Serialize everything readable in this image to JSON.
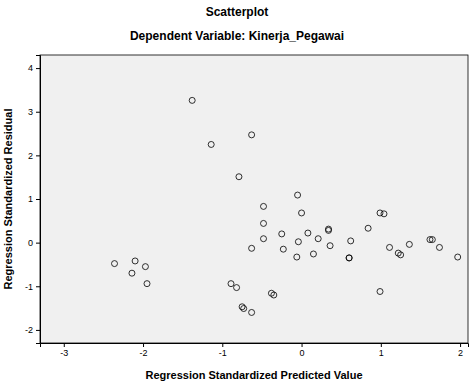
{
  "chart_data": {
    "type": "scatter",
    "title": "Scatterplot",
    "subtitle": "Dependent Variable: Kinerja_Pegawai",
    "x_label": "Regression Standardized Predicted Value",
    "y_label": "Regression Standardized Residual",
    "marker": "open-circle",
    "color": "#000000",
    "x": [
      -2.36,
      -2.14,
      -2.1,
      -1.97,
      -1.95,
      -1.38,
      -1.14,
      -0.89,
      -0.82,
      -0.79,
      -0.75,
      -0.73,
      -0.63,
      -0.63,
      -0.63,
      -0.48,
      -0.48,
      -0.48,
      -0.38,
      -0.35,
      -0.25,
      -0.23,
      -0.06,
      -0.05,
      0.0,
      -0.04,
      0.08,
      0.15,
      0.21,
      0.34,
      0.34,
      0.36,
      0.6,
      0.6,
      0.62,
      0.84,
      0.99,
      1.04,
      1.11,
      1.22,
      1.25,
      0.99,
      1.36,
      1.62,
      1.65,
      1.74,
      1.97
    ],
    "values": [
      -0.48,
      -0.7,
      -0.42,
      -0.55,
      -0.94,
      3.26,
      2.25,
      -0.94,
      -1.03,
      1.51,
      -1.47,
      -1.51,
      2.47,
      -0.13,
      -1.6,
      0.83,
      0.44,
      0.09,
      -1.16,
      -1.2,
      0.2,
      -0.15,
      -0.33,
      1.09,
      0.68,
      0.02,
      0.22,
      -0.26,
      0.09,
      0.28,
      0.31,
      -0.07,
      -0.35,
      -0.35,
      0.04,
      0.33,
      0.68,
      0.66,
      -0.11,
      -0.24,
      -0.28,
      -1.12,
      -0.04,
      0.07,
      0.07,
      -0.11,
      -0.33
    ],
    "xlim": [
      -3.3,
      2.1
    ],
    "xticks": [
      -3,
      -2,
      -1,
      0,
      1,
      2
    ],
    "ylim": [
      -2.3,
      4.3
    ],
    "yticks": [
      -2,
      -1,
      0,
      1,
      2,
      3,
      4
    ],
    "grid": false
  }
}
